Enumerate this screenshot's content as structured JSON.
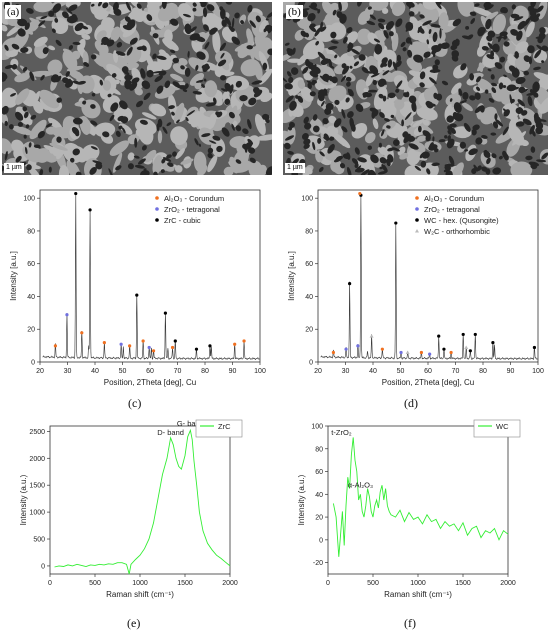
{
  "figure": {
    "panel_a": {
      "tag": "(a)",
      "scale": "1 µm"
    },
    "panel_b": {
      "tag": "(b)",
      "scale": "1 µm"
    },
    "captions": {
      "c": "(c)",
      "d": "(d)",
      "e": "(e)",
      "f": "(f)"
    }
  },
  "chart_data": [
    {
      "id": "c",
      "type": "line",
      "xlabel": "Position, 2Theta [deg], Cu",
      "ylabel": "Intensity [a.u.]",
      "xlim": [
        20,
        100
      ],
      "ylim": [
        0,
        105
      ],
      "xticks": [
        "20",
        "30",
        "40",
        "50",
        "60",
        "70",
        "80",
        "90",
        "100"
      ],
      "yticks": [
        "0",
        "20",
        "40",
        "60",
        "80",
        "100"
      ],
      "grid": false,
      "legend_position": "top-right",
      "legend": [
        {
          "label": "Al₂O₃ - Corundum",
          "color": "#f07020"
        },
        {
          "label": "ZrO₂ - tetragonal",
          "color": "#7070e0"
        },
        {
          "label": "ZrC - cubic",
          "color": "#000000"
        }
      ],
      "series": [
        {
          "color": "#333333",
          "peaks": [
            [
              25.6,
              8
            ],
            [
              29.8,
              27
            ],
            [
              33.0,
              101
            ],
            [
              35.2,
              16
            ],
            [
              37.7,
              7
            ],
            [
              38.2,
              91
            ],
            [
              43.4,
              10
            ],
            [
              49.5,
              9
            ],
            [
              50.3,
              7
            ],
            [
              52.6,
              8
            ],
            [
              55.2,
              39
            ],
            [
              57.5,
              11
            ],
            [
              59.7,
              7
            ],
            [
              60.5,
              6
            ],
            [
              61.3,
              5
            ],
            [
              65.6,
              28
            ],
            [
              66.5,
              6
            ],
            [
              68.2,
              7
            ],
            [
              69.2,
              11
            ],
            [
              76.9,
              6
            ],
            [
              81.8,
              8
            ],
            [
              82.3,
              7
            ],
            [
              90.8,
              9
            ],
            [
              94.2,
              11
            ]
          ]
        }
      ],
      "markers": [
        {
          "x": 25.6,
          "y": 8,
          "phase": 0
        },
        {
          "x": 29.8,
          "y": 27,
          "phase": 1
        },
        {
          "x": 33.0,
          "y": 101,
          "phase": 2
        },
        {
          "x": 35.2,
          "y": 16,
          "phase": 0
        },
        {
          "x": 38.2,
          "y": 91,
          "phase": 2
        },
        {
          "x": 43.4,
          "y": 10,
          "phase": 0
        },
        {
          "x": 49.5,
          "y": 9,
          "phase": 1
        },
        {
          "x": 52.6,
          "y": 8,
          "phase": 0
        },
        {
          "x": 55.2,
          "y": 39,
          "phase": 2
        },
        {
          "x": 57.5,
          "y": 11,
          "phase": 0
        },
        {
          "x": 59.7,
          "y": 7,
          "phase": 1
        },
        {
          "x": 61.3,
          "y": 5,
          "phase": 0
        },
        {
          "x": 65.6,
          "y": 28,
          "phase": 2
        },
        {
          "x": 68.2,
          "y": 7,
          "phase": 0
        },
        {
          "x": 69.2,
          "y": 11,
          "phase": 2
        },
        {
          "x": 76.9,
          "y": 6,
          "phase": 2
        },
        {
          "x": 81.8,
          "y": 8,
          "phase": 2
        },
        {
          "x": 90.8,
          "y": 9,
          "phase": 0
        },
        {
          "x": 94.2,
          "y": 11,
          "phase": 0
        }
      ]
    },
    {
      "id": "d",
      "type": "line",
      "xlabel": "Position, 2Theta [deg], Cu",
      "ylabel": "Intensity [a.u.]",
      "xlim": [
        20,
        100
      ],
      "ylim": [
        0,
        105
      ],
      "xticks": [
        "20",
        "30",
        "40",
        "50",
        "60",
        "70",
        "80",
        "90",
        "100"
      ],
      "yticks": [
        "0",
        "20",
        "40",
        "60",
        "80",
        "100"
      ],
      "grid": false,
      "legend_position": "top-right",
      "legend": [
        {
          "label": "Al₂O₃ - Corundum",
          "color": "#f07020"
        },
        {
          "label": "ZrO₂ - tetragonal",
          "color": "#7070e0"
        },
        {
          "label": "WC - hex. (Qusongite)",
          "color": "#000000"
        },
        {
          "label": "W₂C - orthorhombic",
          "color": "#bbbbbb"
        }
      ],
      "series": [
        {
          "color": "#333333",
          "peaks": [
            [
              25.6,
              4
            ],
            [
              30.2,
              6
            ],
            [
              31.5,
              46
            ],
            [
              34.5,
              8
            ],
            [
              35.6,
              100
            ],
            [
              38.0,
              4
            ],
            [
              39.5,
              14
            ],
            [
              43.4,
              6
            ],
            [
              48.3,
              83
            ],
            [
              50.2,
              4
            ],
            [
              52.6,
              4
            ],
            [
              57.6,
              4
            ],
            [
              60.6,
              3
            ],
            [
              63.9,
              14
            ],
            [
              65.8,
              6
            ],
            [
              68.4,
              4
            ],
            [
              72.8,
              15
            ],
            [
              73.9,
              7
            ],
            [
              75.4,
              5
            ],
            [
              77.2,
              15
            ],
            [
              83.6,
              10
            ],
            [
              84.2,
              8
            ],
            [
              98.7,
              7
            ]
          ]
        }
      ],
      "markers": [
        {
          "x": 25.6,
          "y": 4,
          "phase": 0
        },
        {
          "x": 30.2,
          "y": 6,
          "phase": 1
        },
        {
          "x": 31.5,
          "y": 46,
          "phase": 2
        },
        {
          "x": 34.5,
          "y": 8,
          "phase": 1
        },
        {
          "x": 35.6,
          "y": 100,
          "phase": 2
        },
        {
          "x": 35.2,
          "y": 101,
          "phase": 0
        },
        {
          "x": 39.5,
          "y": 14,
          "phase": 3
        },
        {
          "x": 43.4,
          "y": 6,
          "phase": 0
        },
        {
          "x": 48.3,
          "y": 83,
          "phase": 2
        },
        {
          "x": 50.2,
          "y": 4,
          "phase": 1
        },
        {
          "x": 52.6,
          "y": 4,
          "phase": 3
        },
        {
          "x": 57.6,
          "y": 4,
          "phase": 0
        },
        {
          "x": 60.6,
          "y": 3,
          "phase": 1
        },
        {
          "x": 63.9,
          "y": 14,
          "phase": 2
        },
        {
          "x": 65.8,
          "y": 6,
          "phase": 2
        },
        {
          "x": 68.4,
          "y": 4,
          "phase": 0
        },
        {
          "x": 72.8,
          "y": 15,
          "phase": 2
        },
        {
          "x": 73.9,
          "y": 7,
          "phase": 3
        },
        {
          "x": 75.4,
          "y": 5,
          "phase": 2
        },
        {
          "x": 77.2,
          "y": 15,
          "phase": 2
        },
        {
          "x": 83.6,
          "y": 10,
          "phase": 2
        },
        {
          "x": 98.7,
          "y": 7,
          "phase": 2
        }
      ]
    },
    {
      "id": "e",
      "type": "line",
      "xlabel": "Raman shift (cm⁻¹)",
      "ylabel": "Intensity (a.u.)",
      "xlim": [
        0,
        2000
      ],
      "ylim": [
        -150,
        2600
      ],
      "xticks": [
        "0",
        "500",
        "1000",
        "1500",
        "2000"
      ],
      "yticks": [
        "0",
        "500",
        "1000",
        "1500",
        "2000",
        "2500"
      ],
      "grid": false,
      "legend_position": "top-right",
      "legend": [
        {
          "label": "ZrC",
          "color": "#33ee33"
        }
      ],
      "annotations": [
        {
          "text": "D- band",
          "x": 1340,
          "y": 2430
        },
        {
          "text": "G- band",
          "x": 1560,
          "y": 2600
        }
      ],
      "series": [
        {
          "name": "ZrC",
          "color": "#33ee33",
          "x": [
            50,
            100,
            150,
            200,
            250,
            300,
            350,
            400,
            450,
            500,
            550,
            600,
            650,
            700,
            750,
            800,
            850,
            880,
            900,
            950,
            1000,
            1050,
            1100,
            1150,
            1200,
            1250,
            1300,
            1340,
            1370,
            1400,
            1430,
            1460,
            1500,
            1530,
            1560,
            1580,
            1600,
            1630,
            1660,
            1700,
            1750,
            1800,
            1850,
            1900,
            1950,
            2000
          ],
          "y": [
            -20,
            0,
            -10,
            20,
            0,
            30,
            10,
            -10,
            20,
            10,
            30,
            20,
            40,
            30,
            60,
            60,
            30,
            -150,
            30,
            120,
            200,
            320,
            500,
            800,
            1250,
            1700,
            2000,
            2380,
            2250,
            2000,
            1850,
            1800,
            2050,
            2400,
            2520,
            2350,
            1950,
            1500,
            1000,
            650,
            420,
            300,
            200,
            140,
            70,
            0
          ]
        }
      ]
    },
    {
      "id": "f",
      "type": "line",
      "xlabel": "Raman shift (cm⁻¹)",
      "ylabel": "Intensity (a.u.)",
      "xlim": [
        0,
        2000
      ],
      "ylim": [
        -30,
        100
      ],
      "xticks": [
        "0",
        "500",
        "1000",
        "1500",
        "2000"
      ],
      "yticks": [
        "-20",
        "0",
        "20",
        "40",
        "60",
        "80",
        "100"
      ],
      "grid": false,
      "legend_position": "top-right",
      "legend": [
        {
          "label": "WC",
          "color": "#33ee33"
        }
      ],
      "annotations": [
        {
          "text": "t-ZrO₂",
          "x": 150,
          "y": 92
        },
        {
          "text": "α-Al₂O₃",
          "x": 360,
          "y": 46
        }
      ],
      "series": [
        {
          "name": "WC",
          "color": "#33ee33",
          "x": [
            60,
            90,
            120,
            140,
            160,
            180,
            200,
            220,
            240,
            260,
            280,
            300,
            320,
            340,
            360,
            380,
            400,
            420,
            440,
            460,
            480,
            500,
            520,
            540,
            560,
            580,
            600,
            620,
            640,
            660,
            680,
            700,
            750,
            800,
            850,
            900,
            950,
            1000,
            1050,
            1100,
            1150,
            1200,
            1250,
            1300,
            1350,
            1400,
            1450,
            1500,
            1550,
            1600,
            1650,
            1700,
            1750,
            1800,
            1850,
            1900,
            1950,
            2000
          ],
          "y": [
            32,
            20,
            -15,
            5,
            25,
            -5,
            30,
            55,
            45,
            75,
            90,
            70,
            60,
            35,
            40,
            25,
            20,
            30,
            45,
            38,
            25,
            20,
            30,
            35,
            28,
            42,
            48,
            35,
            45,
            30,
            25,
            22,
            20,
            26,
            16,
            24,
            18,
            20,
            14,
            22,
            16,
            18,
            10,
            16,
            12,
            14,
            8,
            15,
            4,
            10,
            12,
            2,
            8,
            6,
            10,
            0,
            8,
            5
          ]
        }
      ]
    }
  ]
}
